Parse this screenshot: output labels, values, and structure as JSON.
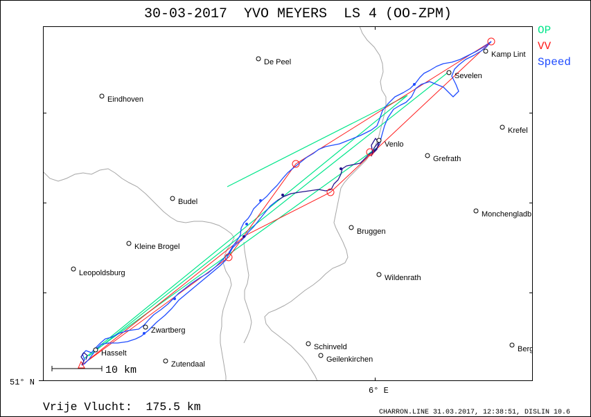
{
  "title": "30-03-2017  YVO MEYERS  LS 4 (OO-ZPM)",
  "legend": [
    {
      "label": "OP",
      "color": "#00e68a"
    },
    {
      "label": "VV",
      "color": "#ff1a1a"
    },
    {
      "label": "Speed",
      "color": "#1e4bff"
    }
  ],
  "map": {
    "towns": [
      "De Peel",
      "Eindhoven",
      "Kamp Lint",
      "Sevelen",
      "Krefel",
      "Venlo",
      "Grefrath",
      "Budel",
      "Bruggen",
      "Monchengladb",
      "Kleine Brogel",
      "Leopoldsburg",
      "Wildenrath",
      "Zwartberg",
      "Hasselt",
      "Zutendaal",
      "Schinveld",
      "Geilenkirchen",
      "Berg"
    ],
    "scale_label": "10 km",
    "latitude_label": "51° N",
    "longitude_label": "6° E"
  },
  "footer": {
    "distance": "Vrije Vlucht:  175.5 km",
    "credit": "CHARRON.LINE 31.03.2017, 12:38:51, DISLIN 10.6"
  }
}
